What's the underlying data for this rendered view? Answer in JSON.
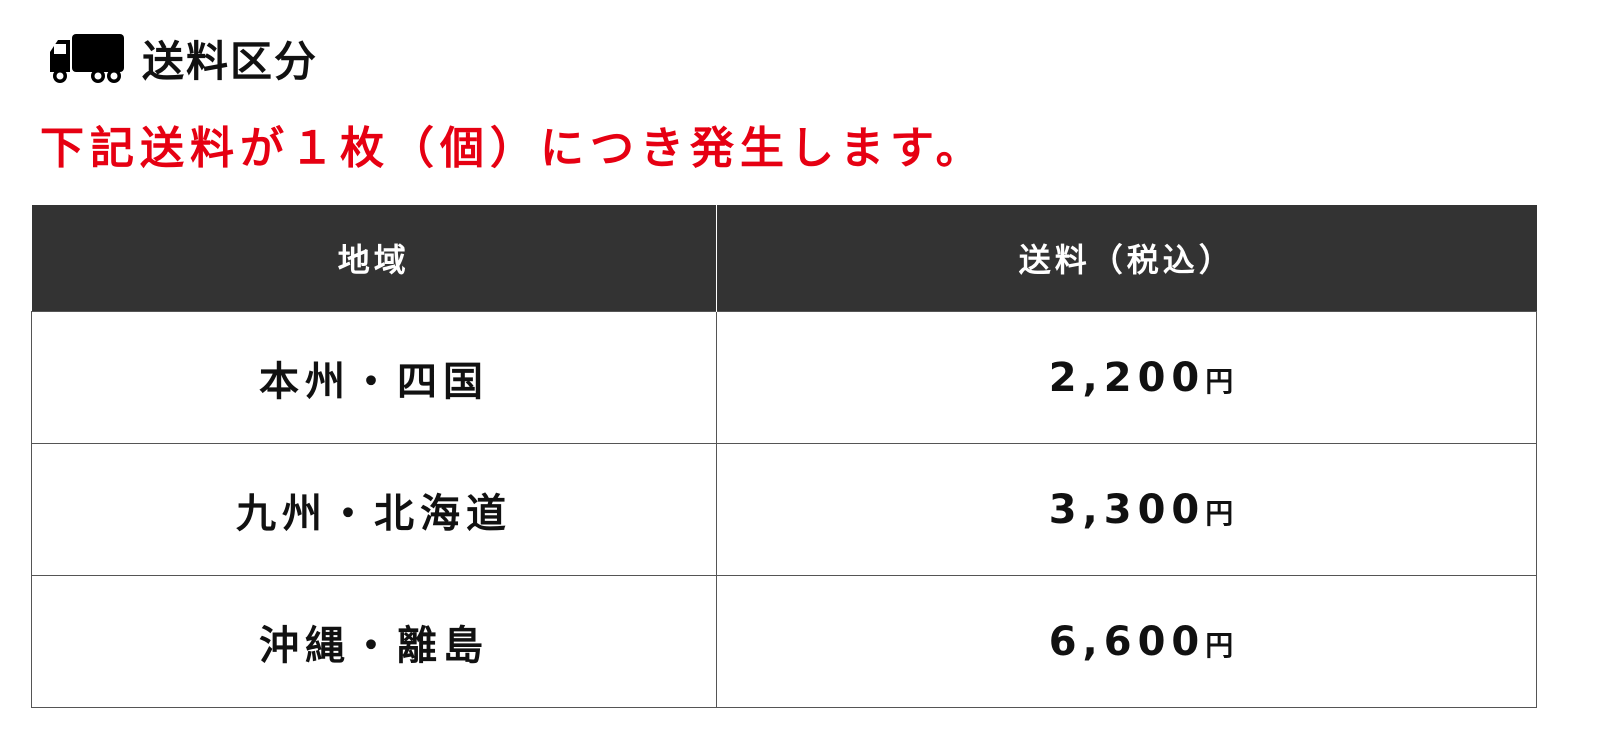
{
  "heading": {
    "icon": "truck-icon",
    "title": "送料区分"
  },
  "notice": "下記送料が１枚（個）につき発生します。",
  "notice_color": "#e60012",
  "table": {
    "headers": [
      "地域",
      "送料（税込）"
    ],
    "rows": [
      {
        "region": "本州・四国",
        "price": "2,200",
        "unit": "円"
      },
      {
        "region": "九州・北海道",
        "price": "3,300",
        "unit": "円"
      },
      {
        "region": "沖縄・離島",
        "price": "6,600",
        "unit": "円"
      }
    ]
  }
}
